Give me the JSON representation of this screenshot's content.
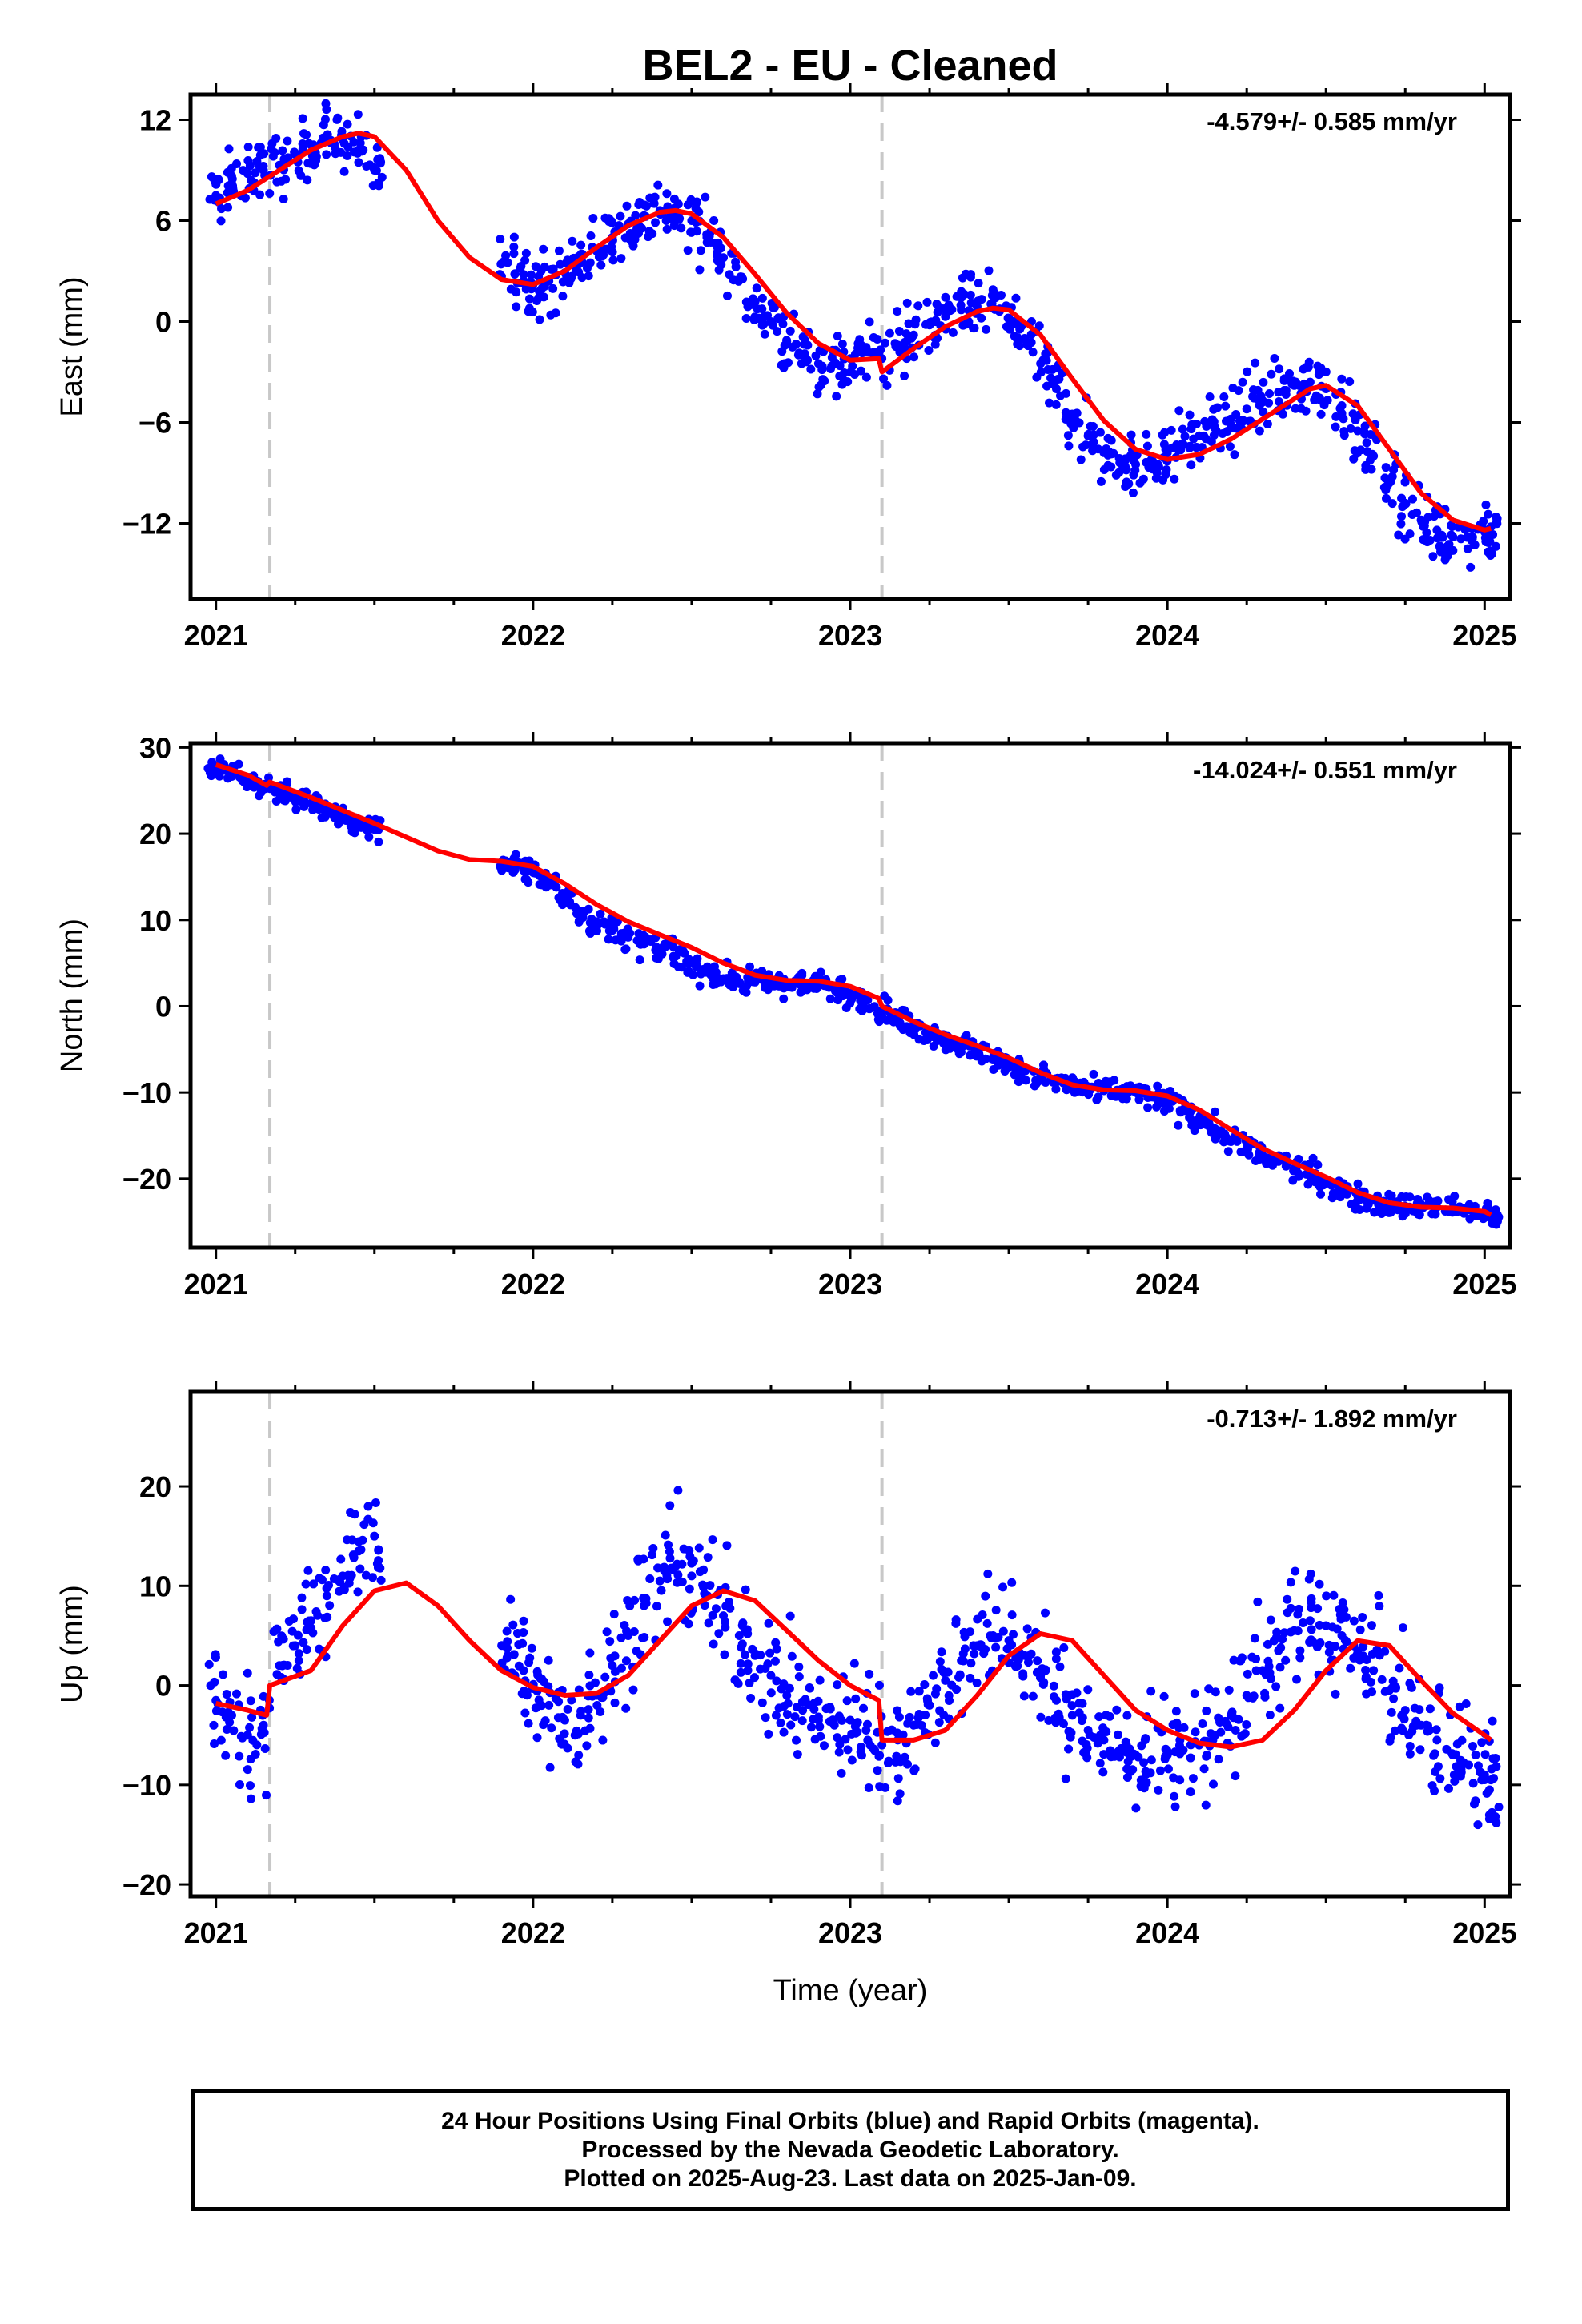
{
  "title": "BEL2  - EU - Cleaned",
  "xlabel": "Time (year)",
  "colors": {
    "points": "#0000ff",
    "model": "#ff0000",
    "offsets": "#c8c8c8",
    "frame": "#000000"
  },
  "chart_data": [
    {
      "type": "scatter",
      "ylabel": "East (mm)",
      "rate": "-4.579+/- 0.585 mm/yr",
      "x_range": [
        2020.92,
        2025.08
      ],
      "xticks": [
        2021,
        2022,
        2023,
        2024,
        2025
      ],
      "ylim": [
        -16.5,
        13.5
      ],
      "yticks": [
        12,
        6,
        0,
        -6,
        -12
      ],
      "yticklabels": [
        "12",
        "6",
        "0",
        "−6",
        "−12"
      ],
      "offset_lines": [
        2021.17,
        2023.1
      ],
      "series": [
        {
          "style": "points",
          "x": [
            2021.0,
            2021.05,
            2021.1,
            2021.15,
            2021.2,
            2021.25,
            2021.3,
            2021.35,
            2021.4,
            2021.45,
            2021.5,
            2021.92,
            2021.97,
            2022.0,
            2022.05,
            2022.1,
            2022.15,
            2022.2,
            2022.25,
            2022.3,
            2022.35,
            2022.4,
            2022.45,
            2022.5,
            2022.55,
            2022.6,
            2022.65,
            2022.7,
            2022.75,
            2022.8,
            2022.85,
            2022.9,
            2022.95,
            2023.0,
            2023.05,
            2023.1,
            2023.15,
            2023.2,
            2023.25,
            2023.3,
            2023.35,
            2023.4,
            2023.45,
            2023.5,
            2023.55,
            2023.6,
            2023.65,
            2023.7,
            2023.75,
            2023.8,
            2023.85,
            2023.9,
            2023.95,
            2024.0,
            2024.05,
            2024.1,
            2024.15,
            2024.2,
            2024.25,
            2024.3,
            2024.35,
            2024.4,
            2024.45,
            2024.5,
            2024.55,
            2024.6,
            2024.65,
            2024.7,
            2024.75,
            2024.8,
            2024.85,
            2024.9,
            2024.95,
            2025.0,
            2025.02
          ],
          "y": [
            7.5,
            8.2,
            8.8,
            9.0,
            9.3,
            10.0,
            10.5,
            11.0,
            10.8,
            10.2,
            9.0,
            3.5,
            2.8,
            2.2,
            2.4,
            2.9,
            3.5,
            4.2,
            5.0,
            5.8,
            6.3,
            6.6,
            6.5,
            6.0,
            5.0,
            3.8,
            2.5,
            1.2,
            0.0,
            -1.2,
            -2.0,
            -2.5,
            -2.5,
            -2.2,
            -1.8,
            -2.2,
            -1.4,
            -0.8,
            -0.2,
            0.3,
            0.7,
            0.9,
            0.8,
            0.2,
            -1.0,
            -2.5,
            -4.0,
            -5.5,
            -6.8,
            -7.8,
            -8.4,
            -8.5,
            -8.2,
            -7.8,
            -7.3,
            -6.8,
            -6.3,
            -5.8,
            -5.2,
            -4.7,
            -4.2,
            -3.8,
            -3.6,
            -4.0,
            -5.0,
            -6.5,
            -8.0,
            -9.5,
            -10.8,
            -11.8,
            -12.4,
            -12.8,
            -12.8,
            -12.5,
            -12.2
          ]
        },
        {
          "style": "model",
          "x": [
            2021.0,
            2021.1,
            2021.2,
            2021.3,
            2021.4,
            2021.45,
            2021.5,
            2021.6,
            2021.7,
            2021.8,
            2021.9,
            2022.0,
            2022.1,
            2022.2,
            2022.3,
            2022.4,
            2022.45,
            2022.5,
            2022.6,
            2022.7,
            2022.8,
            2022.9,
            2023.0,
            2023.09,
            2023.1,
            2023.2,
            2023.3,
            2023.4,
            2023.45,
            2023.5,
            2023.6,
            2023.7,
            2023.8,
            2023.9,
            2024.0,
            2024.1,
            2024.2,
            2024.3,
            2024.4,
            2024.45,
            2024.5,
            2024.6,
            2024.7,
            2024.8,
            2024.9,
            2025.0,
            2025.02
          ],
          "y": [
            7.0,
            7.8,
            9.0,
            10.2,
            11.0,
            11.2,
            11.0,
            9.0,
            6.0,
            3.8,
            2.5,
            2.2,
            3.0,
            4.4,
            5.7,
            6.5,
            6.6,
            6.4,
            5.0,
            2.8,
            0.5,
            -1.3,
            -2.3,
            -2.2,
            -3.0,
            -1.6,
            -0.3,
            0.6,
            0.8,
            0.7,
            -0.8,
            -3.4,
            -5.9,
            -7.6,
            -8.2,
            -7.9,
            -7.0,
            -5.8,
            -4.6,
            -4.0,
            -3.8,
            -5.0,
            -7.6,
            -10.2,
            -11.8,
            -12.4,
            -12.3
          ]
        }
      ]
    },
    {
      "type": "scatter",
      "ylabel": "North (mm)",
      "rate": "-14.024+/- 0.551 mm/yr",
      "x_range": [
        2020.92,
        2025.08
      ],
      "xticks": [
        2021,
        2022,
        2023,
        2024,
        2025
      ],
      "ylim": [
        -28,
        30.5
      ],
      "yticks": [
        30,
        20,
        10,
        0,
        -10,
        -20
      ],
      "yticklabels": [
        "30",
        "20",
        "10",
        "0",
        "−10",
        "−20"
      ],
      "offset_lines": [
        2021.17,
        2023.1
      ],
      "series": [
        {
          "style": "points",
          "x": [
            2021.0,
            2021.05,
            2021.1,
            2021.15,
            2021.2,
            2021.25,
            2021.3,
            2021.35,
            2021.4,
            2021.45,
            2021.5,
            2021.92,
            2021.97,
            2022.0,
            2022.05,
            2022.1,
            2022.15,
            2022.2,
            2022.25,
            2022.3,
            2022.35,
            2022.4,
            2022.45,
            2022.5,
            2022.55,
            2022.6,
            2022.65,
            2022.7,
            2022.75,
            2022.8,
            2022.85,
            2022.9,
            2022.95,
            2023.0,
            2023.05,
            2023.1,
            2023.15,
            2023.2,
            2023.25,
            2023.3,
            2023.35,
            2023.4,
            2023.45,
            2023.5,
            2023.55,
            2023.6,
            2023.65,
            2023.7,
            2023.75,
            2023.8,
            2023.85,
            2023.9,
            2023.95,
            2024.0,
            2024.05,
            2024.1,
            2024.15,
            2024.2,
            2024.25,
            2024.3,
            2024.35,
            2024.4,
            2024.45,
            2024.5,
            2024.55,
            2024.6,
            2024.65,
            2024.7,
            2024.75,
            2024.8,
            2024.85,
            2024.9,
            2024.95,
            2025.0,
            2025.02
          ],
          "y": [
            27.5,
            27.0,
            26.2,
            25.5,
            25.0,
            24.2,
            23.5,
            22.8,
            22.0,
            21.2,
            20.5,
            16.5,
            16.0,
            15.5,
            14.2,
            12.5,
            11.0,
            9.8,
            8.8,
            8.0,
            7.2,
            6.5,
            5.8,
            5.0,
            4.0,
            3.2,
            2.8,
            2.8,
            2.7,
            2.6,
            2.6,
            2.5,
            2.0,
            1.5,
            1.0,
            -0.5,
            -1.5,
            -2.3,
            -3.0,
            -3.8,
            -4.5,
            -5.2,
            -6.0,
            -6.8,
            -7.5,
            -8.2,
            -8.8,
            -9.3,
            -9.6,
            -9.8,
            -9.8,
            -10.0,
            -10.5,
            -11.2,
            -12.0,
            -13.0,
            -14.2,
            -15.5,
            -16.5,
            -17.3,
            -18.0,
            -18.8,
            -19.6,
            -20.5,
            -21.3,
            -22.0,
            -22.5,
            -23.0,
            -23.2,
            -23.3,
            -23.3,
            -23.4,
            -23.6,
            -24.0,
            -24.4
          ]
        },
        {
          "style": "model",
          "x": [
            2021.0,
            2021.1,
            2021.16,
            2021.17,
            2021.3,
            2021.5,
            2021.7,
            2021.8,
            2021.9,
            2022.0,
            2022.1,
            2022.2,
            2022.3,
            2022.4,
            2022.5,
            2022.6,
            2022.7,
            2022.8,
            2022.9,
            2023.0,
            2023.09,
            2023.1,
            2023.2,
            2023.3,
            2023.4,
            2023.5,
            2023.6,
            2023.7,
            2023.8,
            2023.9,
            2024.0,
            2024.1,
            2024.2,
            2024.3,
            2024.4,
            2024.5,
            2024.6,
            2024.7,
            2024.8,
            2024.9,
            2025.0,
            2025.02
          ],
          "y": [
            28.0,
            26.8,
            25.6,
            26.0,
            24.2,
            21.2,
            18.0,
            17.0,
            16.8,
            16.2,
            14.2,
            11.8,
            9.8,
            8.3,
            6.8,
            5.0,
            3.6,
            3.0,
            2.9,
            2.3,
            0.9,
            0.0,
            -1.8,
            -3.3,
            -4.6,
            -6.0,
            -7.7,
            -9.1,
            -9.7,
            -9.8,
            -10.4,
            -12.0,
            -14.3,
            -16.5,
            -18.2,
            -19.8,
            -21.6,
            -22.8,
            -23.3,
            -23.4,
            -23.8,
            -24.2
          ]
        }
      ]
    },
    {
      "type": "scatter",
      "ylabel": "Up (mm)",
      "rate": "-0.713+/- 1.892 mm/yr",
      "x_range": [
        2020.92,
        2025.08
      ],
      "xticks": [
        2021,
        2022,
        2023,
        2024,
        2025
      ],
      "ylim": [
        -21.2,
        29.5
      ],
      "yticks": [
        20,
        10,
        0,
        -10,
        -20
      ],
      "yticklabels": [
        "20",
        "10",
        "0",
        "−10",
        "−20"
      ],
      "offset_lines": [
        2021.17,
        2023.1
      ],
      "series": [
        {
          "style": "points",
          "x": [
            2021.0,
            2021.05,
            2021.1,
            2021.15,
            2021.2,
            2021.25,
            2021.3,
            2021.35,
            2021.4,
            2021.45,
            2021.5,
            2021.92,
            2021.97,
            2022.0,
            2022.05,
            2022.1,
            2022.15,
            2022.2,
            2022.25,
            2022.3,
            2022.35,
            2022.4,
            2022.45,
            2022.5,
            2022.55,
            2022.6,
            2022.65,
            2022.7,
            2022.75,
            2022.8,
            2022.85,
            2022.9,
            2022.95,
            2023.0,
            2023.05,
            2023.1,
            2023.15,
            2023.2,
            2023.25,
            2023.3,
            2023.35,
            2023.4,
            2023.45,
            2023.5,
            2023.55,
            2023.6,
            2023.65,
            2023.7,
            2023.75,
            2023.8,
            2023.85,
            2023.9,
            2023.95,
            2024.0,
            2024.05,
            2024.1,
            2024.15,
            2024.2,
            2024.25,
            2024.3,
            2024.35,
            2024.4,
            2024.45,
            2024.5,
            2024.55,
            2024.6,
            2024.65,
            2024.7,
            2024.75,
            2024.8,
            2024.85,
            2024.9,
            2024.95,
            2025.0,
            2025.02
          ],
          "y": [
            -1.5,
            -3.0,
            -5.0,
            -4.0,
            2.0,
            4.0,
            6.5,
            9.0,
            11.0,
            13.5,
            15.0,
            3.0,
            1.5,
            0.0,
            -2.0,
            -3.5,
            -3.0,
            -1.0,
            2.0,
            5.0,
            8.0,
            10.5,
            12.0,
            11.0,
            9.0,
            7.0,
            5.0,
            3.0,
            1.0,
            -1.0,
            -2.5,
            -3.5,
            -4.0,
            -3.5,
            -4.5,
            -6.0,
            -5.5,
            -4.0,
            -2.0,
            0.5,
            2.5,
            4.0,
            5.0,
            4.5,
            3.0,
            1.0,
            -1.5,
            -3.0,
            -4.5,
            -5.5,
            -6.5,
            -7.0,
            -7.5,
            -7.0,
            -6.5,
            -6.0,
            -5.0,
            -3.0,
            -1.0,
            1.5,
            3.5,
            5.5,
            6.5,
            6.0,
            5.0,
            3.5,
            1.5,
            -0.5,
            -2.5,
            -4.0,
            -5.5,
            -7.0,
            -8.0,
            -9.0,
            -9.5
          ]
        },
        {
          "style": "model",
          "x": [
            2021.0,
            2021.1,
            2021.16,
            2021.17,
            2021.3,
            2021.4,
            2021.5,
            2021.6,
            2021.7,
            2021.8,
            2021.9,
            2022.0,
            2022.1,
            2022.2,
            2022.3,
            2022.4,
            2022.5,
            2022.6,
            2022.7,
            2022.8,
            2022.9,
            2023.0,
            2023.09,
            2023.1,
            2023.2,
            2023.3,
            2023.4,
            2023.5,
            2023.6,
            2023.7,
            2023.8,
            2023.9,
            2024.0,
            2024.1,
            2024.2,
            2024.3,
            2024.4,
            2024.5,
            2024.6,
            2024.7,
            2024.8,
            2024.9,
            2025.0,
            2025.02
          ],
          "y": [
            -1.8,
            -2.5,
            -3.0,
            0.0,
            1.5,
            6.0,
            9.5,
            10.3,
            8.0,
            4.5,
            1.5,
            -0.2,
            -1.0,
            -0.8,
            1.0,
            4.5,
            8.0,
            9.5,
            8.5,
            5.5,
            2.5,
            0.0,
            -1.5,
            -5.5,
            -5.5,
            -4.5,
            -1.0,
            3.0,
            5.2,
            4.5,
            1.0,
            -2.5,
            -4.5,
            -5.8,
            -6.2,
            -5.5,
            -2.5,
            1.5,
            4.5,
            4.0,
            0.5,
            -2.8,
            -5.0,
            -5.5
          ]
        }
      ]
    }
  ],
  "footer": {
    "line1": "24 Hour Positions Using Final Orbits (blue) and Rapid Orbits (magenta).",
    "line2": "Processed by the Nevada Geodetic Laboratory.",
    "line3": "Plotted on 2025-Aug-23. Last data on 2025-Jan-09."
  }
}
